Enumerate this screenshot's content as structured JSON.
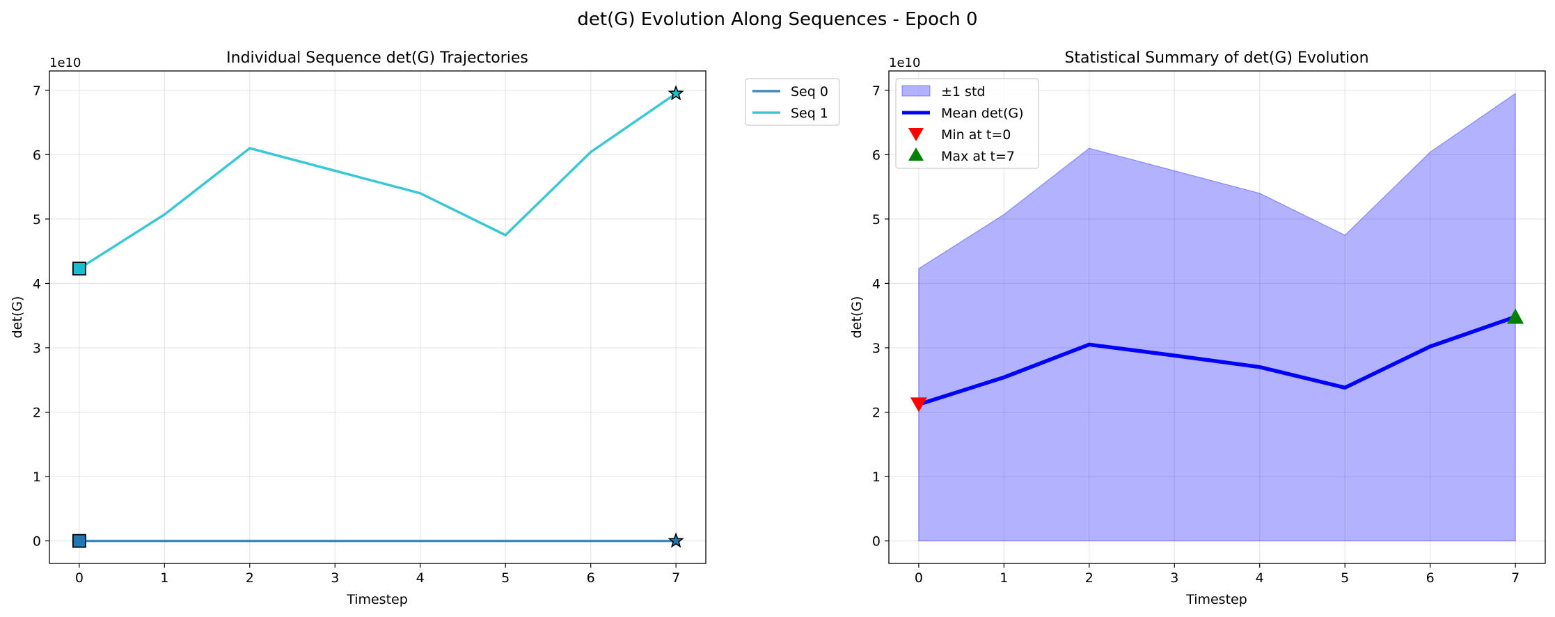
{
  "figure": {
    "suptitle": "det(G) Evolution Along Sequences - Epoch 0"
  },
  "chart_data": [
    {
      "type": "line",
      "title": "Individual Sequence det(G) Trajectories",
      "xlabel": "Timestep",
      "ylabel": "det(G)",
      "y_offset_label": "1e10",
      "x": [
        0,
        1,
        2,
        3,
        4,
        5,
        6,
        7
      ],
      "xlim": [
        -0.35,
        7.35
      ],
      "ylim": [
        -0.35,
        7.3
      ],
      "y_scale": 10000000000.0,
      "xticks": [
        0,
        1,
        2,
        3,
        4,
        5,
        6,
        7
      ],
      "yticks": [
        0,
        1,
        2,
        3,
        4,
        5,
        6,
        7
      ],
      "grid": true,
      "legend_placement": "outside-top-right",
      "series": [
        {
          "name": "Seq 0",
          "color": "#1f77b4",
          "values": [
            0.0,
            0.0,
            0.0,
            0.0,
            0.0,
            0.0,
            0.0,
            0.0
          ],
          "start_marker": "square",
          "end_marker": "star"
        },
        {
          "name": "Seq 1",
          "color": "#17becf",
          "values": [
            4.23,
            5.07,
            6.1,
            5.75,
            5.4,
            4.75,
            6.04,
            6.95
          ],
          "start_marker": "square",
          "end_marker": "star"
        }
      ]
    },
    {
      "type": "area",
      "title": "Statistical Summary of det(G) Evolution",
      "xlabel": "Timestep",
      "ylabel": "det(G)",
      "y_offset_label": "1e10",
      "x": [
        0,
        1,
        2,
        3,
        4,
        5,
        6,
        7
      ],
      "xlim": [
        -0.35,
        7.35
      ],
      "ylim": [
        -0.35,
        7.3
      ],
      "y_scale": 10000000000.0,
      "xticks": [
        0,
        1,
        2,
        3,
        4,
        5,
        6,
        7
      ],
      "yticks": [
        0,
        1,
        2,
        3,
        4,
        5,
        6,
        7
      ],
      "grid": true,
      "legend_placement": "top-left",
      "band": {
        "name": "±1 std",
        "color": "#0000ff",
        "lower": [
          0,
          0,
          0,
          0,
          0,
          0,
          0,
          0
        ],
        "upper": [
          4.23,
          5.07,
          6.1,
          5.75,
          5.4,
          4.75,
          6.04,
          6.95
        ]
      },
      "series": [
        {
          "name": "Mean det(G)",
          "color": "#0000ff",
          "values": [
            2.12,
            2.54,
            3.05,
            2.88,
            2.7,
            2.38,
            3.02,
            3.48
          ]
        }
      ],
      "markers": [
        {
          "name": "Min at t=0",
          "x": 0,
          "y": 2.12,
          "shape": "triangle-down",
          "color": "#ff0000"
        },
        {
          "name": "Max at t=7",
          "x": 7,
          "y": 3.48,
          "shape": "triangle-up",
          "color": "#008000"
        }
      ]
    }
  ]
}
